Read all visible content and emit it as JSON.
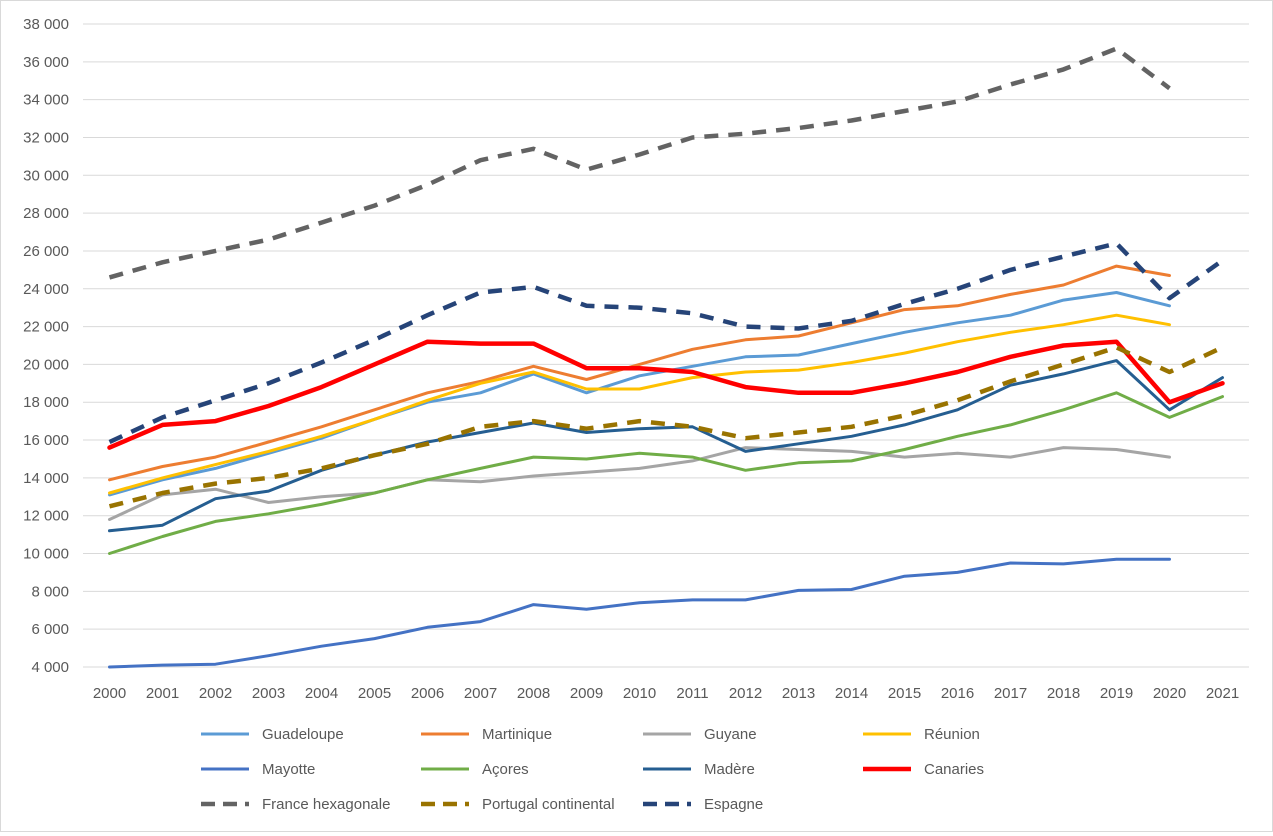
{
  "chart_data": {
    "type": "line",
    "title": "",
    "xlabel": "",
    "ylabel": "",
    "ylim": [
      4000,
      38000
    ],
    "y_ticks": [
      4000,
      6000,
      8000,
      10000,
      12000,
      14000,
      16000,
      18000,
      20000,
      22000,
      24000,
      26000,
      28000,
      30000,
      32000,
      34000,
      36000,
      38000
    ],
    "y_tick_labels": [
      "4 000",
      "6 000",
      "8 000",
      "10 000",
      "12 000",
      "14 000",
      "16 000",
      "18 000",
      "20 000",
      "22 000",
      "24 000",
      "26 000",
      "28 000",
      "30 000",
      "32 000",
      "34 000",
      "36 000",
      "38 000"
    ],
    "grid": true,
    "legend_position": "bottom",
    "categories": [
      "2000",
      "2001",
      "2002",
      "2003",
      "2004",
      "2005",
      "2006",
      "2007",
      "2008",
      "2009",
      "2010",
      "2011",
      "2012",
      "2013",
      "2014",
      "2015",
      "2016",
      "2017",
      "2018",
      "2019",
      "2020",
      "2021"
    ],
    "series": [
      {
        "name": "Guadeloupe",
        "color": "#5b9bd5",
        "dash": false,
        "width": 3,
        "values": [
          13100,
          13900,
          14500,
          15300,
          16100,
          17100,
          18000,
          18500,
          19500,
          18500,
          19400,
          19900,
          20400,
          20500,
          21100,
          21700,
          22200,
          22600,
          23400,
          23800,
          23100,
          null
        ]
      },
      {
        "name": "Martinique",
        "color": "#ed7d31",
        "dash": false,
        "width": 3,
        "values": [
          13900,
          14600,
          15100,
          15900,
          16700,
          17600,
          18500,
          19100,
          19900,
          19200,
          20000,
          20800,
          21300,
          21500,
          22200,
          22900,
          23100,
          23700,
          24200,
          25200,
          24700,
          null
        ]
      },
      {
        "name": "Guyane",
        "color": "#a5a5a5",
        "dash": false,
        "width": 3,
        "values": [
          11800,
          13100,
          13400,
          12700,
          13000,
          13200,
          13900,
          13800,
          14100,
          14300,
          14500,
          14900,
          15600,
          15500,
          15400,
          15100,
          15300,
          15100,
          15600,
          15500,
          15100,
          null
        ]
      },
      {
        "name": "Réunion",
        "color": "#ffc000",
        "dash": false,
        "width": 3,
        "values": [
          13200,
          14000,
          14700,
          15400,
          16200,
          17100,
          18100,
          19000,
          19600,
          18700,
          18700,
          19300,
          19600,
          19700,
          20100,
          20600,
          21200,
          21700,
          22100,
          22600,
          22100,
          null
        ]
      },
      {
        "name": "Mayotte",
        "color": "#4472c4",
        "dash": false,
        "width": 3,
        "values": [
          4000,
          4100,
          4150,
          4600,
          5100,
          5500,
          6100,
          6400,
          7300,
          7050,
          7400,
          7550,
          7550,
          8050,
          8100,
          8800,
          9000,
          9500,
          9450,
          9700,
          9700,
          null
        ]
      },
      {
        "name": "Açores",
        "color": "#70ad47",
        "dash": false,
        "width": 3,
        "values": [
          10000,
          10900,
          11700,
          12100,
          12600,
          13200,
          13900,
          14500,
          15100,
          15000,
          15300,
          15100,
          14400,
          14800,
          14900,
          15500,
          16200,
          16800,
          17600,
          18500,
          17200,
          18300
        ]
      },
      {
        "name": "Madère",
        "color": "#255e91",
        "dash": false,
        "width": 3,
        "values": [
          11200,
          11500,
          12900,
          13300,
          14400,
          15200,
          15900,
          16400,
          16900,
          16400,
          16600,
          16700,
          15400,
          15800,
          16200,
          16800,
          17600,
          18900,
          19500,
          20200,
          17600,
          19300
        ]
      },
      {
        "name": "Canaries",
        "color": "#ff0000",
        "dash": false,
        "width": 4.5,
        "values": [
          15600,
          16800,
          17000,
          17800,
          18800,
          20000,
          21200,
          21100,
          21100,
          19800,
          19800,
          19600,
          18800,
          18500,
          18500,
          19000,
          19600,
          20400,
          21000,
          21200,
          18000,
          19000
        ]
      },
      {
        "name": "France hexagonale",
        "color": "#636363",
        "dash": true,
        "width": 4.5,
        "values": [
          24600,
          25400,
          26000,
          26600,
          27500,
          28400,
          29500,
          30800,
          31400,
          30300,
          31100,
          32000,
          32200,
          32500,
          32900,
          33400,
          33900,
          34800,
          35600,
          36700,
          34600,
          null
        ]
      },
      {
        "name": "Portugal continental",
        "color": "#997300",
        "dash": true,
        "width": 4.5,
        "values": [
          12500,
          13200,
          13700,
          14000,
          14500,
          15200,
          15800,
          16700,
          17000,
          16600,
          17000,
          16700,
          16100,
          16400,
          16700,
          17300,
          18100,
          19100,
          20000,
          20900,
          19600,
          20900
        ]
      },
      {
        "name": "Espagne",
        "color": "#264478",
        "dash": true,
        "width": 4.5,
        "values": [
          15900,
          17200,
          18100,
          19000,
          20100,
          21300,
          22600,
          23800,
          24100,
          23100,
          23000,
          22700,
          22000,
          21900,
          22300,
          23200,
          24000,
          25000,
          25700,
          26400,
          23500,
          25500
        ]
      }
    ]
  }
}
